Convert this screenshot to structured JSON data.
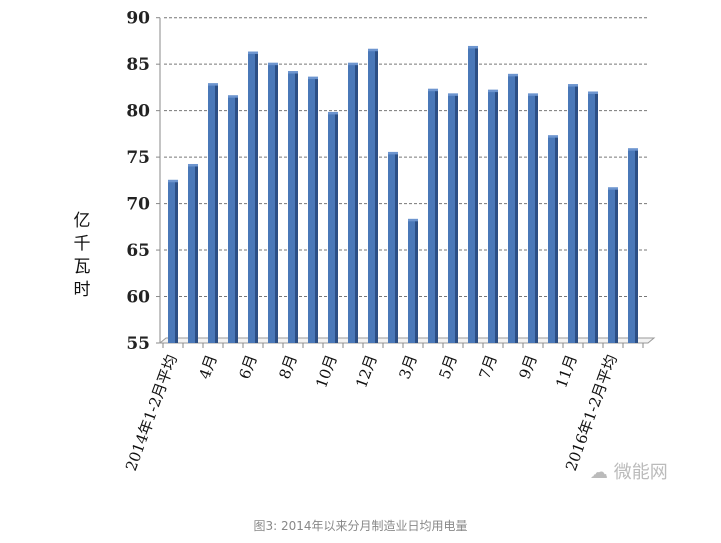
{
  "chart_data": {
    "type": "bar",
    "title": "",
    "xlabel": "",
    "ylabel": "亿千瓦时",
    "ylim": [
      55,
      90
    ],
    "yticks": [
      55,
      60,
      65,
      70,
      75,
      80,
      85,
      90
    ],
    "grid": true,
    "bar_color": "#4a78b8",
    "categories": [
      "2014年1-2月平均",
      "",
      "4月",
      "",
      "6月",
      "",
      "8月",
      "",
      "10月",
      "",
      "12月",
      "",
      "3月",
      "",
      "5月",
      "",
      "7月",
      "",
      "9月",
      "",
      "11月",
      "",
      "2016年1-2月平均",
      ""
    ],
    "values": [
      72.4,
      74.1,
      82.8,
      81.5,
      86.2,
      85.0,
      84.1,
      83.5,
      79.7,
      85.0,
      86.5,
      75.4,
      68.2,
      82.2,
      81.7,
      86.8,
      82.1,
      83.8,
      81.7,
      77.2,
      82.7,
      81.9,
      71.6,
      75.8
    ]
  },
  "caption": "图3: 2014年以来分月制造业日均用电量",
  "watermark": "微能网"
}
